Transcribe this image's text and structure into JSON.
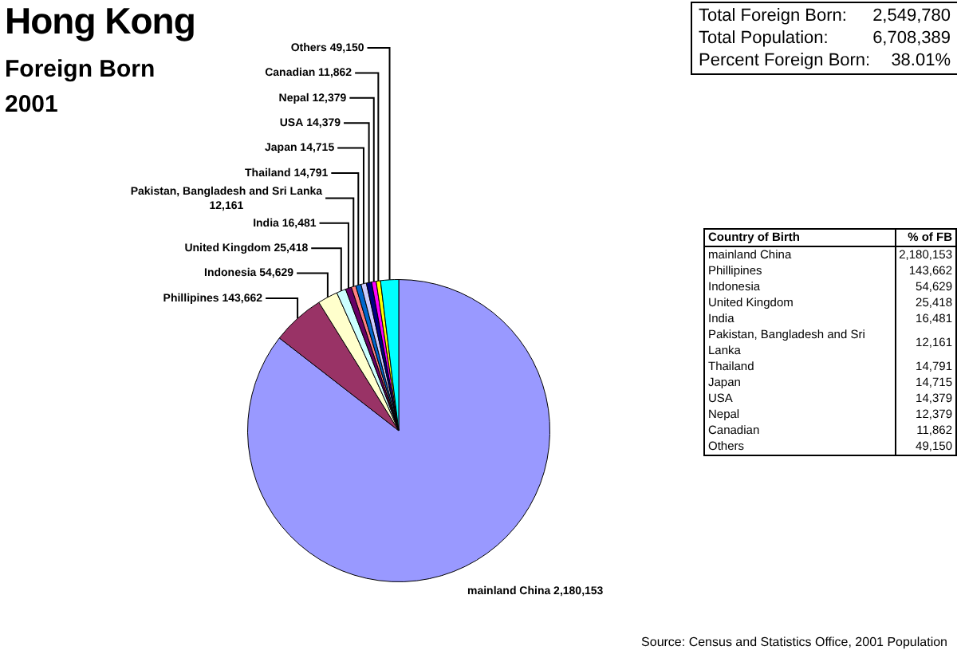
{
  "chart_data": {
    "type": "pie",
    "title": "Hong Kong",
    "subtitle": "Foreign Born\n2001",
    "categories": [
      "mainland China",
      "Phillipines",
      "Indonesia",
      "United Kingdom",
      "India",
      "Pakistan, Bangladesh and Sri Lanka",
      "Thailand",
      "Japan",
      "USA",
      "Nepal",
      "Canadian",
      "Others"
    ],
    "values": [
      2180153,
      143662,
      54629,
      25418,
      16481,
      12161,
      14791,
      14715,
      14379,
      12379,
      11862,
      49150
    ],
    "colors": [
      "#9999ff",
      "#993366",
      "#ffffcc",
      "#ccffff",
      "#660066",
      "#ff8080",
      "#0066cc",
      "#ccccff",
      "#000080",
      "#ff00ff",
      "#ffff00",
      "#00ffff"
    ],
    "value_labels": [
      "2,180,153",
      "143,662",
      "54,629",
      "25,418",
      "16,481",
      "12,161",
      "14,791",
      "14,715",
      "14,379",
      "12,379",
      "11,862",
      "49,150"
    ],
    "legend": false,
    "annotations": [
      "Total Foreign Born: 2,549,780",
      "Total Population: 6,708,389",
      "Percent Foreign Born: 38.01%",
      "Country of Birth",
      "% of FB",
      "Source: Census and Statistics Office, 2001 Population"
    ]
  }
}
